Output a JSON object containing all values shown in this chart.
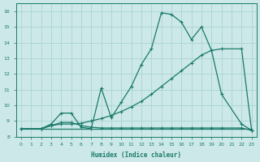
{
  "xlabel": "Humidex (Indice chaleur)",
  "bg_color": "#cce8e8",
  "grid_color": "#aad4d4",
  "line_color": "#1a7a6a",
  "xlim": [
    -0.5,
    23.5
  ],
  "ylim": [
    8,
    16.5
  ],
  "xticks": [
    0,
    1,
    2,
    3,
    4,
    5,
    6,
    7,
    8,
    9,
    10,
    11,
    12,
    13,
    14,
    15,
    16,
    17,
    18,
    19,
    20,
    21,
    22,
    23
  ],
  "yticks": [
    8,
    9,
    10,
    11,
    12,
    13,
    14,
    15,
    16
  ],
  "line1_x": [
    0,
    2,
    3,
    4,
    5,
    6,
    7,
    8,
    9,
    10,
    11,
    12,
    13,
    14,
    15,
    16,
    17,
    18,
    19,
    20,
    22,
    23
  ],
  "line1_y": [
    8.5,
    8.5,
    8.8,
    9.5,
    9.5,
    8.6,
    8.5,
    11.1,
    9.2,
    10.2,
    11.2,
    12.6,
    13.6,
    15.9,
    15.8,
    15.3,
    14.2,
    15.0,
    13.5,
    10.7,
    8.8,
    8.4
  ],
  "line2_x": [
    0,
    2,
    3,
    4,
    5,
    6,
    7,
    8,
    9,
    10,
    11,
    12,
    13,
    14,
    15,
    16,
    17,
    18,
    19,
    20,
    22,
    23
  ],
  "line2_y": [
    8.5,
    8.5,
    8.7,
    8.8,
    8.8,
    8.85,
    9.0,
    9.15,
    9.35,
    9.6,
    9.9,
    10.25,
    10.7,
    11.2,
    11.7,
    12.2,
    12.7,
    13.2,
    13.5,
    13.6,
    13.6,
    8.4
  ],
  "line3_x": [
    0,
    2,
    3,
    4,
    5,
    6,
    7,
    8,
    9,
    10,
    11,
    12,
    13,
    14,
    15,
    16,
    17,
    18,
    19,
    20,
    22,
    23
  ],
  "line3_y": [
    8.5,
    8.5,
    8.7,
    8.9,
    8.9,
    8.7,
    8.6,
    8.55,
    8.55,
    8.55,
    8.55,
    8.55,
    8.55,
    8.55,
    8.55,
    8.55,
    8.55,
    8.55,
    8.55,
    8.55,
    8.55,
    8.4
  ],
  "line4_x": [
    0,
    23
  ],
  "line4_y": [
    8.5,
    8.5
  ],
  "marker": "+"
}
